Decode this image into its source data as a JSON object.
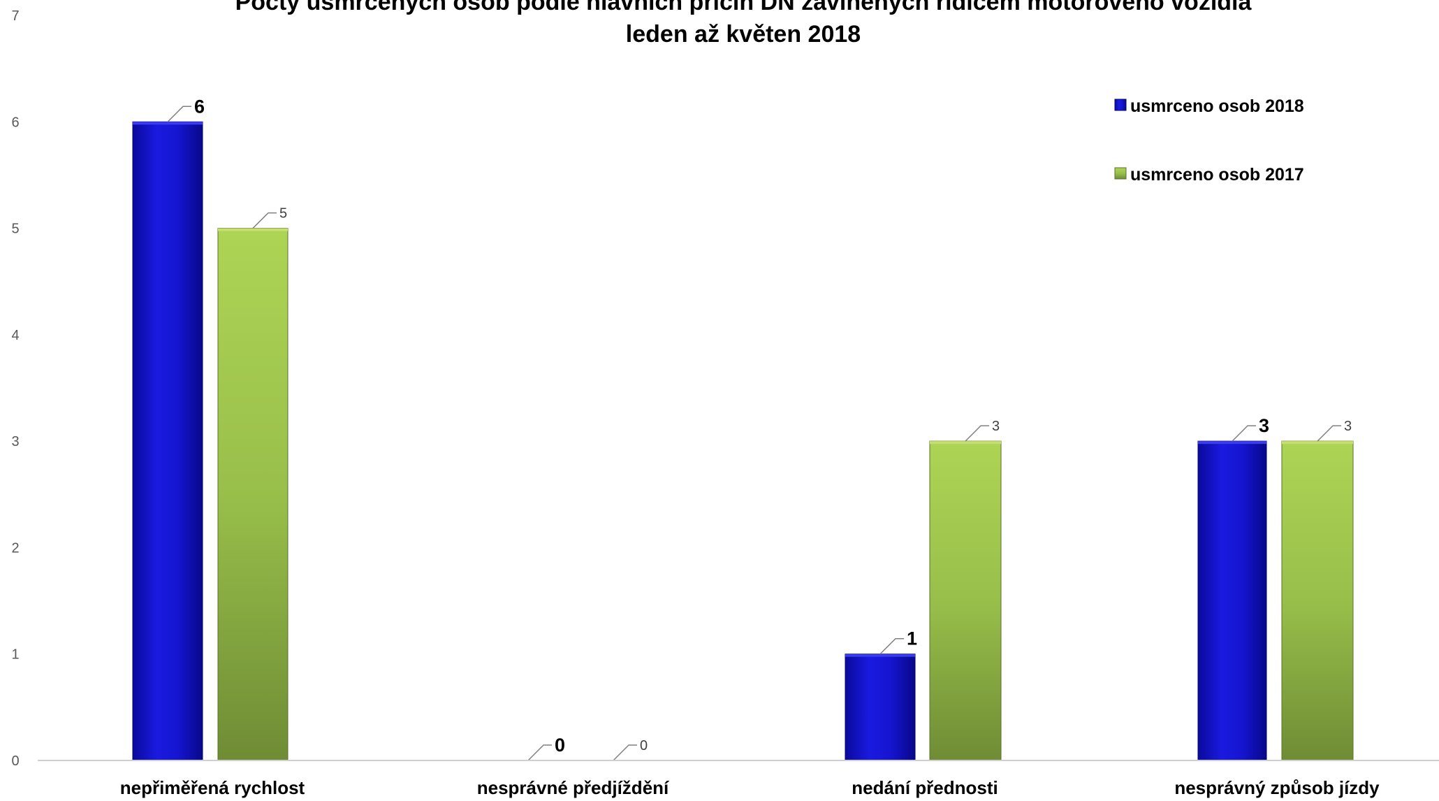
{
  "chart_data": {
    "type": "bar",
    "title": "Počty usmrcených osob podle hlavních příčin DN zaviněných řidičem motorového vozidla",
    "subtitle": "leden až květen 2018",
    "categories": [
      "nepřiměřená rychlost",
      "nesprávné předjíždění",
      "nedání přednosti",
      "nesprávný způsob jízdy"
    ],
    "series": [
      {
        "name": "usmrceno osob 2018",
        "values": [
          6,
          0,
          1,
          3
        ],
        "color": "#1010c8"
      },
      {
        "name": "usmrceno osob 2017",
        "values": [
          5,
          0,
          3,
          3
        ],
        "color": "#92b84a"
      }
    ],
    "ylim": [
      0,
      7
    ],
    "yticks": [
      0,
      1,
      2,
      3,
      4,
      5,
      6,
      7
    ],
    "grid": false,
    "legend_position": "top-right"
  }
}
